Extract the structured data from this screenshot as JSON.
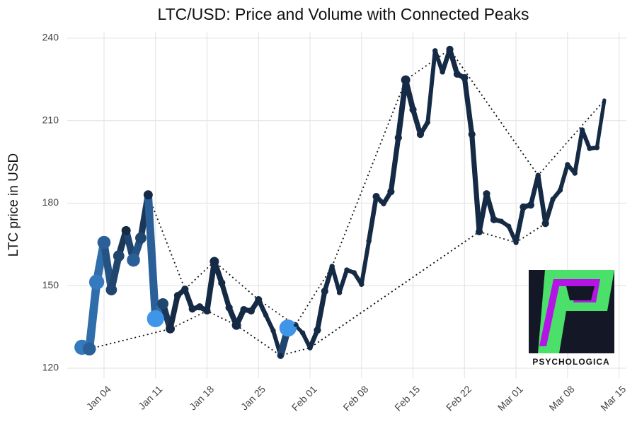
{
  "chart_data": {
    "type": "line",
    "title": "LTC/USD: Price and Volume with Connected Peaks",
    "y_label": "LTC price in USD",
    "watermark": "PSYCHOLOGICA",
    "color": "#152a45",
    "high_volume_color": "#3f95e8",
    "grid": true,
    "x": [
      1,
      2,
      3,
      4,
      5,
      6,
      7,
      8,
      9,
      10,
      11,
      12,
      13,
      14,
      15,
      16,
      17,
      18,
      19,
      20,
      21,
      22,
      23,
      24,
      25,
      26,
      27,
      28,
      29,
      30,
      31,
      32,
      33,
      34,
      35,
      36,
      37,
      38,
      39,
      40,
      41,
      42,
      43,
      44,
      45,
      46,
      47,
      48,
      49,
      50,
      51,
      52,
      53,
      54,
      55,
      56,
      57,
      58,
      59,
      60,
      61,
      62,
      63,
      64,
      65,
      66,
      67,
      68,
      69,
      70,
      71,
      72
    ],
    "values": [
      127.6,
      127,
      151.3,
      165.7,
      148.5,
      160.8,
      170,
      159.3,
      167.3,
      183,
      138,
      143.4,
      134.3,
      146.4,
      148.7,
      141.5,
      142.3,
      140.8,
      158.8,
      151,
      142,
      135.6,
      141.3,
      140.8,
      144.9,
      139.2,
      133.6,
      124.6,
      134.6,
      135.6,
      132.8,
      127.4,
      133.8,
      148,
      157,
      147.5,
      155.7,
      154.7,
      150.5,
      166.2,
      182.4,
      179.8,
      184.2,
      203.8,
      224.8,
      214,
      205,
      209.4,
      235.4,
      227.7,
      235.9,
      226.9,
      225.6,
      205,
      169.6,
      183.4,
      174,
      173.4,
      171.6,
      165.7,
      178.6,
      179.3,
      190.1,
      172.6,
      181.4,
      184.7,
      194,
      190.9,
      206.6,
      199.9,
      200.2,
      217.4
    ],
    "volume": [
      8,
      7,
      8,
      7,
      6,
      6,
      5,
      7,
      6,
      5,
      9,
      6,
      5,
      4,
      4,
      4,
      4,
      4,
      5,
      4,
      4,
      5,
      4,
      4,
      4,
      3,
      3,
      3,
      9,
      2,
      3,
      3,
      4,
      4,
      3,
      3,
      3,
      3,
      3,
      3,
      4,
      3,
      4,
      4,
      5,
      4,
      4,
      3,
      3,
      3,
      4,
      4,
      4,
      4,
      4,
      4,
      4,
      3,
      3,
      3,
      4,
      4,
      3,
      4,
      3,
      3,
      3,
      3,
      3,
      3,
      3,
      2
    ],
    "xlim": [
      -1,
      75
    ],
    "ylim": [
      116.4,
      242.3
    ],
    "xticks": [
      {
        "value": 4,
        "label": "Jan 04"
      },
      {
        "value": 11,
        "label": "Jan 11"
      },
      {
        "value": 18,
        "label": "Jan 18"
      },
      {
        "value": 25,
        "label": "Jan 25"
      },
      {
        "value": 32,
        "label": "Feb 01"
      },
      {
        "value": 39,
        "label": "Feb 08"
      },
      {
        "value": 46,
        "label": "Feb 15"
      },
      {
        "value": 53,
        "label": "Feb 22"
      },
      {
        "value": 60,
        "label": "Mar 01"
      },
      {
        "value": 67,
        "label": "Mar 08"
      },
      {
        "value": 74,
        "label": "Mar 15"
      }
    ],
    "yticks": [
      120,
      150,
      180,
      210,
      240
    ]
  }
}
